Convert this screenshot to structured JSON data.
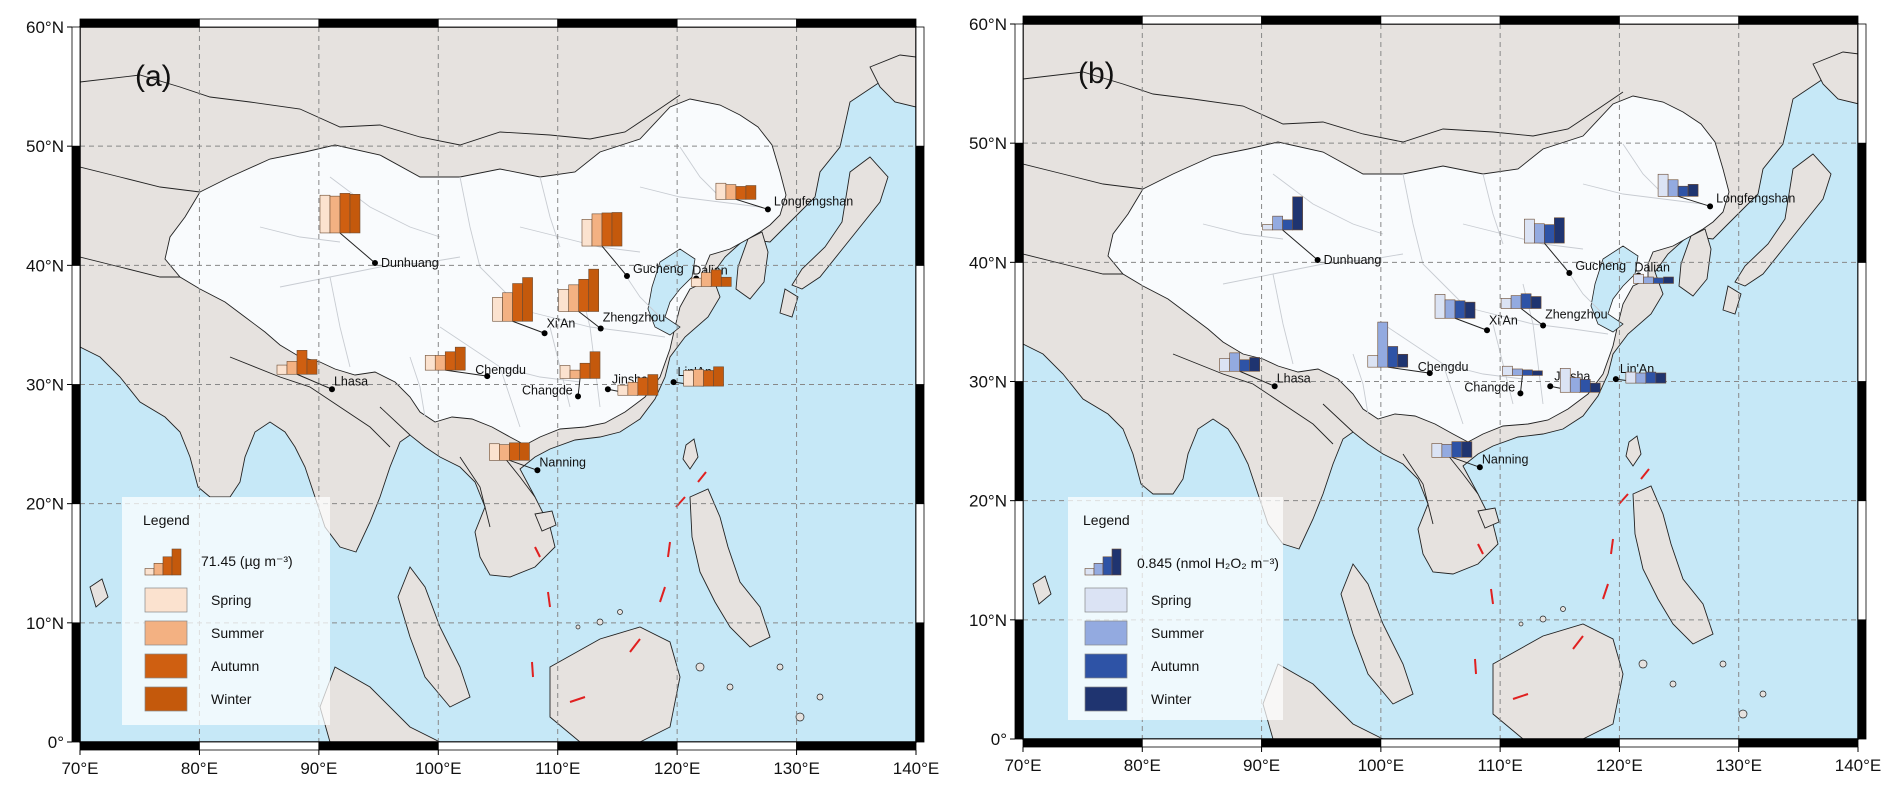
{
  "panels": [
    {
      "id": "a",
      "label": "(a)",
      "legend": {
        "title": "Legend",
        "scale": "71.45 (µg m⁻³)",
        "seasons": [
          "Spring",
          "Summer",
          "Autumn",
          "Winter"
        ]
      },
      "colors": [
        "#fbe2cf",
        "#f3b182",
        "#cf5f11",
        "#c4590c"
      ],
      "sites": [
        {
          "name": "Dunhuang",
          "values": [
            0.82,
            0.8,
            0.86,
            0.84
          ]
        },
        {
          "name": "Gucheng",
          "values": [
            0.58,
            0.7,
            0.72,
            0.73
          ]
        },
        {
          "name": "Longfengshan",
          "values": [
            0.35,
            0.32,
            0.28,
            0.3
          ]
        },
        {
          "name": "Dalian",
          "values": [
            0.18,
            0.3,
            0.36,
            0.2
          ]
        },
        {
          "name": "Xi'An",
          "values": [
            0.52,
            0.62,
            0.82,
            0.95
          ]
        },
        {
          "name": "Zhengzhou",
          "values": [
            0.48,
            0.58,
            0.7,
            0.92
          ]
        },
        {
          "name": "Chengdu",
          "values": [
            0.32,
            0.32,
            0.4,
            0.5
          ]
        },
        {
          "name": "Changde",
          "values": [
            0.28,
            0.18,
            0.33,
            0.58
          ]
        },
        {
          "name": "Lhasa",
          "values": [
            0.2,
            0.28,
            0.52,
            0.32
          ]
        },
        {
          "name": "Jinsha",
          "values": [
            0.22,
            0.28,
            0.38,
            0.45
          ]
        },
        {
          "name": "Lin'An",
          "values": [
            0.34,
            0.36,
            0.34,
            0.42
          ]
        },
        {
          "name": "Nanning",
          "values": [
            0.36,
            0.34,
            0.38,
            0.38
          ]
        }
      ]
    },
    {
      "id": "b",
      "label": "(b)",
      "legend": {
        "title": "Legend",
        "scale": "0.845 (nmol H₂O₂ m⁻³)",
        "seasons": [
          "Spring",
          "Summer",
          "Autumn",
          "Winter"
        ]
      },
      "colors": [
        "#dbe3f4",
        "#93aae0",
        "#2e53a6",
        "#1f3470"
      ],
      "sites": [
        {
          "name": "Dunhuang",
          "values": [
            0.12,
            0.3,
            0.22,
            0.72
          ]
        },
        {
          "name": "Gucheng",
          "values": [
            0.52,
            0.42,
            0.4,
            0.55
          ]
        },
        {
          "name": "Longfengshan",
          "values": [
            0.48,
            0.36,
            0.22,
            0.26
          ]
        },
        {
          "name": "Dalian",
          "values": [
            0.2,
            0.14,
            0.12,
            0.14
          ]
        },
        {
          "name": "Xi'An",
          "values": [
            0.52,
            0.4,
            0.38,
            0.35
          ]
        },
        {
          "name": "Zhengzhou",
          "values": [
            0.22,
            0.28,
            0.32,
            0.26
          ]
        },
        {
          "name": "Chengdu",
          "values": [
            0.25,
            0.98,
            0.45,
            0.28
          ]
        },
        {
          "name": "Changde",
          "values": [
            0.2,
            0.14,
            0.12,
            0.1
          ]
        },
        {
          "name": "Lhasa",
          "values": [
            0.28,
            0.4,
            0.25,
            0.3
          ]
        },
        {
          "name": "Jinsha",
          "values": [
            0.52,
            0.32,
            0.28,
            0.2
          ]
        },
        {
          "name": "Lin'An",
          "values": [
            0.24,
            0.22,
            0.24,
            0.22
          ]
        },
        {
          "name": "Nanning",
          "values": [
            0.3,
            0.28,
            0.34,
            0.34
          ]
        }
      ]
    }
  ],
  "axes": {
    "lon_ticks": [
      "70°E",
      "80°E",
      "90°E",
      "100°E",
      "110°E",
      "120°E",
      "130°E",
      "140°E"
    ],
    "lat_ticks": [
      "0°",
      "10°N",
      "20°N",
      "30°N",
      "40°N",
      "50°N",
      "60°N"
    ],
    "lon_range": [
      70,
      140
    ],
    "lat_range": [
      0,
      60
    ]
  },
  "site_coords": [
    {
      "name": "Dunhuang",
      "lon": 94.7,
      "lat": 40.2
    },
    {
      "name": "Gucheng",
      "lon": 115.8,
      "lat": 39.1
    },
    {
      "name": "Longfengshan",
      "lon": 127.6,
      "lat": 44.7
    },
    {
      "name": "Dalian",
      "lon": 121.6,
      "lat": 38.9
    },
    {
      "name": "Xi'An",
      "lon": 108.9,
      "lat": 34.3
    },
    {
      "name": "Zhengzhou",
      "lon": 113.6,
      "lat": 34.7
    },
    {
      "name": "Chengdu",
      "lon": 104.1,
      "lat": 30.7
    },
    {
      "name": "Changde",
      "lon": 111.7,
      "lat": 29.0
    },
    {
      "name": "Lhasa",
      "lon": 91.1,
      "lat": 29.6
    },
    {
      "name": "Jinsha",
      "lon": 114.2,
      "lat": 29.6
    },
    {
      "name": "Lin'An",
      "lon": 119.7,
      "lat": 30.2
    },
    {
      "name": "Nanning",
      "lon": 108.3,
      "lat": 22.8
    }
  ]
}
